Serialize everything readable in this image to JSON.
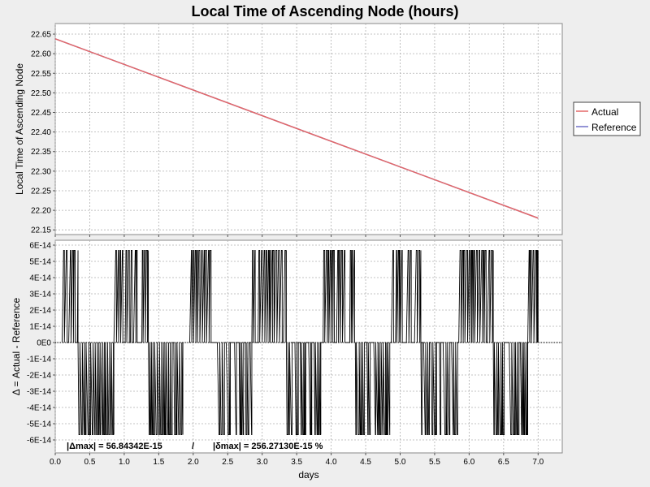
{
  "chart_data": [
    {
      "type": "line",
      "title": "Local Time of Ascending Node (hours)",
      "xlabel": "",
      "ylabel": "Local Time of Ascending Node",
      "xlim": [
        0,
        7.35
      ],
      "ylim": [
        22.138,
        22.677
      ],
      "y_ticks": [
        "22.15",
        "22.20",
        "22.25",
        "22.30",
        "22.35",
        "22.40",
        "22.45",
        "22.50",
        "22.55",
        "22.60",
        "22.65"
      ],
      "grid": true,
      "legend_position": "right",
      "series": [
        {
          "name": "Actual",
          "color": "#e46868",
          "x": [
            0,
            7.0
          ],
          "y": [
            22.638,
            22.18
          ]
        },
        {
          "name": "Reference",
          "color": "#7070c8",
          "x": [
            0,
            7.0
          ],
          "y": [
            22.638,
            22.18
          ]
        }
      ]
    },
    {
      "type": "line",
      "title": "",
      "xlabel": "days",
      "ylabel": "Δ = Actual - Reference",
      "xlim": [
        0,
        7.35
      ],
      "ylim": [
        -6.8e-14,
        6.3e-14
      ],
      "y_ticks": [
        "-6E-14",
        "-5E-14",
        "-4E-14",
        "-3E-14",
        "-2E-14",
        "-1E-14",
        "0E0",
        "1E-14",
        "2E-14",
        "3E-14",
        "4E-14",
        "5E-14",
        "6E-14"
      ],
      "x_ticks": [
        "0.0",
        "0.5",
        "1.0",
        "1.5",
        "2.0",
        "2.5",
        "3.0",
        "3.5",
        "4.0",
        "4.5",
        "5.0",
        "5.5",
        "6.0",
        "6.5",
        "7.0"
      ],
      "grid": true,
      "series": [
        {
          "name": "",
          "color": "#000000",
          "segments": [
            {
              "x": [
                0.1,
                0.33
              ],
              "value": 5.68e-14
            },
            {
              "x": [
                0.33,
                0.85
              ],
              "value": -5.68e-14
            },
            {
              "x": [
                0.85,
                1.35
              ],
              "value": 5.68e-14
            },
            {
              "x": [
                1.35,
                1.85
              ],
              "value": -5.68e-14
            },
            {
              "x": [
                1.95,
                2.35
              ],
              "value": 5.68e-14
            },
            {
              "x": [
                2.35,
                2.85
              ],
              "value": -5.68e-14
            },
            {
              "x": [
                2.85,
                3.35
              ],
              "value": 5.68e-14
            },
            {
              "x": [
                3.35,
                3.85
              ],
              "value": -5.68e-14
            },
            {
              "x": [
                3.85,
                4.35
              ],
              "value": 5.68e-14
            },
            {
              "x": [
                4.35,
                4.85
              ],
              "value": -5.68e-14
            },
            {
              "x": [
                4.85,
                5.3
              ],
              "value": 5.68e-14
            },
            {
              "x": [
                5.3,
                5.85
              ],
              "value": -5.68e-14
            },
            {
              "x": [
                5.85,
                6.35
              ],
              "value": 5.68e-14
            },
            {
              "x": [
                6.35,
                6.85
              ],
              "value": -5.68e-14
            },
            {
              "x": [
                6.85,
                7.0
              ],
              "value": 5.68e-14
            }
          ]
        }
      ],
      "stats": {
        "delta_max": "|Δmax| = 56.84342E-15",
        "separator": "/",
        "rel_delta_max": "|δmax| = 256.27130E-15 %"
      }
    }
  ]
}
